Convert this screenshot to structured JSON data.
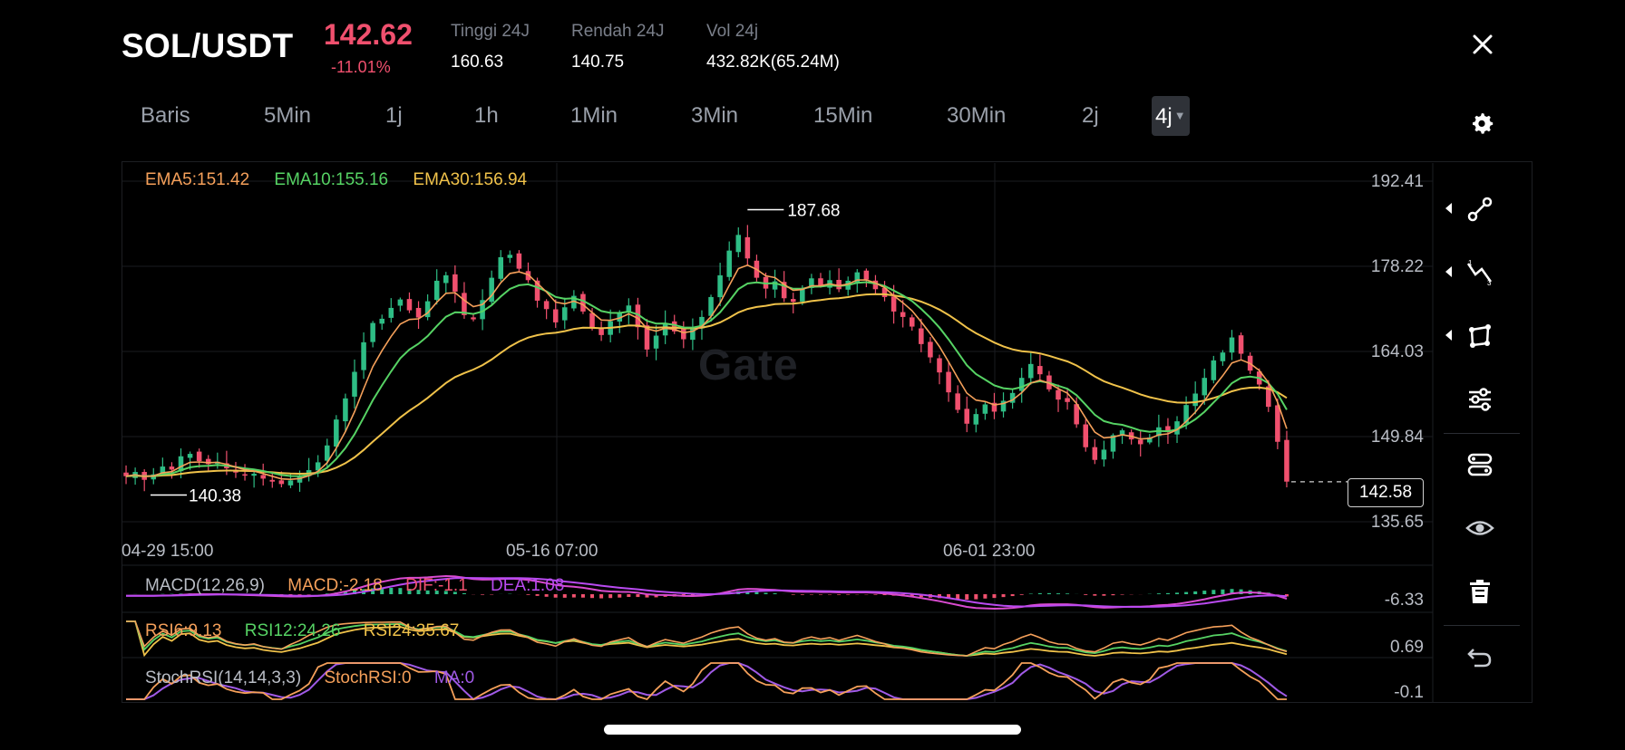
{
  "header": {
    "pair": "SOL/USDT",
    "price": "142.62",
    "change": "-11.01%",
    "high_label": "Tinggi 24J",
    "high_value": "160.63",
    "low_label": "Rendah 24J",
    "low_value": "140.75",
    "vol_label": "Vol 24j",
    "vol_value": "432.82K(65.24M)"
  },
  "intervals": [
    "Baris",
    "5Min",
    "1j",
    "1h",
    "1Min",
    "3Min",
    "15Min",
    "30Min",
    "2j",
    "4j"
  ],
  "active_interval": "4j",
  "colors": {
    "up": "#2ebd85",
    "down": "#f0506e",
    "ema5": "#f5a05a",
    "ema10": "#56d364",
    "ema30": "#f0c24a",
    "macd_dif": "#d94bd0",
    "macd_dea": "#b94af0",
    "stoch_k": "#f5a05a",
    "stoch_d": "#a05ae6"
  },
  "chart_data": {
    "type": "candlestick",
    "indicators": {
      "ema5": "EMA5:151.42",
      "ema10": "EMA10:155.16",
      "ema30": "EMA30:156.94"
    },
    "y_ticks": [
      "192.41",
      "178.22",
      "164.03",
      "149.84",
      "135.65"
    ],
    "ylim": [
      135.65,
      192.41
    ],
    "x_ticks": [
      "04-29 15:00",
      "05-16 07:00",
      "06-01 23:00"
    ],
    "high_marker": "187.68",
    "low_marker": "140.38",
    "last_price": "142.58",
    "close_series": [
      143.5,
      144.2,
      142.9,
      143.8,
      145.1,
      144.6,
      146.8,
      147.2,
      146.0,
      145.5,
      145.9,
      144.8,
      144.1,
      143.7,
      143.9,
      143.1,
      142.6,
      142.2,
      142.8,
      143.4,
      144.5,
      145.8,
      148.6,
      152.9,
      156.4,
      160.8,
      165.7,
      168.9,
      169.6,
      171.4,
      172.8,
      171.0,
      169.8,
      172.5,
      175.9,
      176.8,
      174.1,
      170.2,
      169.5,
      172.7,
      176.4,
      179.8,
      180.2,
      177.9,
      176.0,
      172.6,
      171.2,
      169.0,
      171.5,
      173.4,
      170.8,
      168.0,
      166.9,
      169.2,
      170.5,
      171.8,
      168.2,
      164.5,
      166.8,
      168.9,
      167.5,
      166.2,
      168.0,
      169.9,
      173.2,
      176.8,
      180.9,
      183.5,
      179.6,
      176.4,
      174.6,
      175.8,
      173.0,
      172.4,
      174.7,
      176.3,
      175.1,
      176.0,
      174.5,
      175.9,
      177.3,
      176.1,
      174.5,
      173.2,
      170.8,
      169.9,
      168.3,
      165.4,
      163.2,
      160.7,
      157.4,
      154.5,
      152.2,
      153.8,
      155.4,
      154.2,
      156.0,
      157.3,
      159.8,
      162.1,
      160.4,
      157.9,
      156.2,
      155.8,
      152.1,
      148.3,
      146.2,
      147.9,
      150.3,
      151.1,
      149.6,
      148.8,
      149.9,
      151.6,
      150.8,
      152.6,
      155.3,
      157.2,
      159.8,
      162.7,
      164.0,
      166.5,
      163.8,
      161.0,
      158.7,
      155.0,
      149.2,
      142.6
    ],
    "macd": {
      "label": "MACD(12,26,9)",
      "macd": "MACD:-2.18",
      "dif": "DIF:-1.1",
      "dea": "DEA:1.08",
      "y_tick": "-6.33"
    },
    "rsi": {
      "rsi6": "RSI6:9.13",
      "rsi12": "RSI12:24.26",
      "rsi24": "RSI24:35.67",
      "y_tick": "0.69"
    },
    "stoch": {
      "label": "StochRSI(14,14,3,3)",
      "stochrsi": "StochRSI:0",
      "ma": "MA:0",
      "y_tick": "-0.1"
    }
  },
  "tools": [
    "line-tool-icon",
    "trend-tool-icon",
    "shape-tool-icon",
    "indicator-settings-icon",
    "layers-icon",
    "eye-icon",
    "trash-icon",
    "undo-icon"
  ],
  "watermark": "Gate"
}
